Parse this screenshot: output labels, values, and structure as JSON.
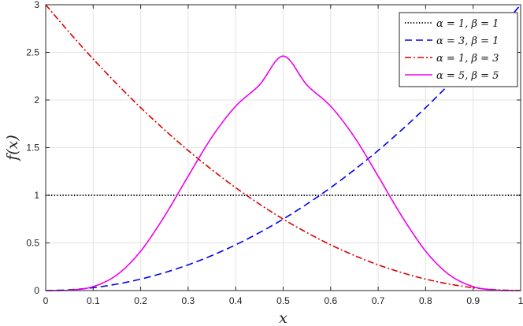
{
  "chart_data": {
    "type": "line",
    "title": "",
    "xlabel": "x",
    "ylabel": "f(x)",
    "xlim": [
      0,
      1
    ],
    "ylim": [
      0,
      3
    ],
    "xticks": [
      "0",
      "0.1",
      "0.2",
      "0.3",
      "0.4",
      "0.5",
      "0.6",
      "0.7",
      "0.8",
      "0.9",
      "1"
    ],
    "yticks": [
      "0",
      "0.5",
      "1",
      "1.5",
      "2",
      "2.5",
      "3"
    ],
    "grid": true,
    "legend_position": "top-right",
    "series": [
      {
        "name": "α = 1, β = 1",
        "color": "#000000",
        "style": "dotted",
        "x": [
          0,
          0.1,
          0.2,
          0.3,
          0.4,
          0.5,
          0.6,
          0.7,
          0.8,
          0.9,
          1
        ],
        "y": [
          1,
          1,
          1,
          1,
          1,
          1,
          1,
          1,
          1,
          1,
          1
        ]
      },
      {
        "name": "α = 3, β = 1",
        "color": "#0000ee",
        "style": "dashed",
        "x": [
          0,
          0.05,
          0.1,
          0.15,
          0.2,
          0.25,
          0.3,
          0.35,
          0.4,
          0.45,
          0.5,
          0.55,
          0.6,
          0.65,
          0.7,
          0.75,
          0.8,
          0.85,
          0.9,
          0.95,
          1
        ],
        "y": [
          0,
          0.008,
          0.03,
          0.068,
          0.12,
          0.188,
          0.27,
          0.368,
          0.48,
          0.608,
          0.75,
          0.908,
          1.08,
          1.268,
          1.47,
          1.688,
          1.92,
          2.168,
          2.43,
          2.708,
          3
        ]
      },
      {
        "name": "α = 1, β = 3",
        "color": "#dd0000",
        "style": "dashdot",
        "x": [
          0,
          0.05,
          0.1,
          0.15,
          0.2,
          0.25,
          0.3,
          0.35,
          0.4,
          0.45,
          0.5,
          0.55,
          0.6,
          0.65,
          0.7,
          0.75,
          0.8,
          0.85,
          0.9,
          0.95,
          1
        ],
        "y": [
          3,
          2.708,
          2.43,
          2.168,
          1.92,
          1.688,
          1.47,
          1.268,
          1.08,
          0.908,
          0.75,
          0.608,
          0.48,
          0.368,
          0.27,
          0.188,
          0.12,
          0.068,
          0.03,
          0.008,
          0
        ]
      },
      {
        "name": "α = 5, β = 5",
        "color": "#ee00ee",
        "style": "solid",
        "x": [
          0,
          0.05,
          0.1,
          0.15,
          0.2,
          0.25,
          0.3,
          0.35,
          0.4,
          0.45,
          0.5,
          0.55,
          0.6,
          0.65,
          0.7,
          0.75,
          0.8,
          0.85,
          0.9,
          0.95,
          1
        ],
        "y": [
          0,
          0.004,
          0.0413,
          0.1643,
          0.4129,
          0.7786,
          1.2007,
          1.6114,
          1.9349,
          2.1576,
          2.4609,
          2.1576,
          1.9349,
          1.6114,
          1.2007,
          0.7786,
          0.4129,
          0.1643,
          0.0413,
          0.004,
          0
        ]
      }
    ]
  }
}
